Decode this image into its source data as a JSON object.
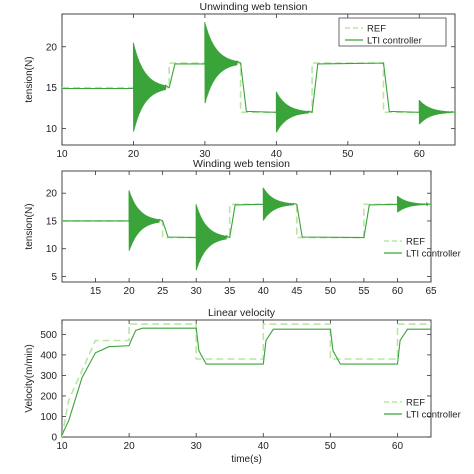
{
  "chart_data": [
    {
      "type": "line",
      "title": "Unwinding web tension",
      "xlabel": "",
      "ylabel": "tension(N)",
      "xlim": [
        10,
        65
      ],
      "ylim": [
        8,
        24
      ],
      "xticks": [
        10,
        20,
        30,
        40,
        50,
        60
      ],
      "yticks": [
        10,
        15,
        20
      ],
      "legend_position": "top-right",
      "series": [
        {
          "name": "REF",
          "style": "dashed",
          "color": "#b9e6a3",
          "x": [
            10,
            20,
            20,
            25,
            25,
            35,
            35,
            45,
            45,
            55,
            55,
            65
          ],
          "y": [
            15,
            15,
            15,
            15,
            18,
            18,
            12,
            12,
            18,
            18,
            12,
            12
          ]
        },
        {
          "name": "LTI controller",
          "style": "solid",
          "color": "#3aa33a",
          "x": [
            10,
            20,
            25,
            25.8,
            30,
            35,
            35.8,
            40,
            45,
            45.8,
            55,
            55.8,
            60,
            65
          ],
          "y": [
            14.9,
            14.9,
            15,
            17.9,
            17.9,
            18,
            12.1,
            12,
            12,
            17.9,
            18,
            12.1,
            12,
            12
          ],
          "oscillation_bursts": [
            [
              20,
              15,
              5.5
            ],
            [
              30,
              18,
              5
            ],
            [
              40,
              12,
              2.5
            ],
            [
              60,
              12,
              1.5
            ]
          ]
        }
      ]
    },
    {
      "type": "line",
      "title": "Winding web tension",
      "xlabel": "",
      "ylabel": "tension(N)",
      "xlim": [
        10,
        65
      ],
      "ylim": [
        4,
        24
      ],
      "xticks": [
        15,
        20,
        25,
        30,
        35,
        40,
        45,
        50,
        55,
        60,
        65
      ],
      "yticks": [
        5,
        10,
        15,
        20
      ],
      "legend_position": "bottom-right",
      "series": [
        {
          "name": "REF",
          "style": "dashed",
          "color": "#b9e6a3",
          "x": [
            10,
            25,
            25,
            35,
            35,
            45,
            45,
            55,
            55,
            65
          ],
          "y": [
            15,
            15,
            12,
            12,
            18,
            18,
            12,
            12,
            18,
            18
          ]
        },
        {
          "name": "LTI controller",
          "style": "solid",
          "color": "#3aa33a",
          "x": [
            10,
            20,
            25,
            25.8,
            30,
            35,
            35.8,
            40,
            45,
            45.8,
            55,
            55.8,
            60,
            65
          ],
          "y": [
            15,
            15,
            15,
            12.1,
            12,
            12,
            17.9,
            18,
            18,
            12.1,
            12,
            17.9,
            18,
            18
          ],
          "oscillation_bursts": [
            [
              20,
              15,
              5.5
            ],
            [
              30,
              12,
              6
            ],
            [
              40,
              18,
              3
            ],
            [
              60,
              18,
              1.5
            ]
          ]
        }
      ]
    },
    {
      "type": "line",
      "title": "Linear velocity",
      "xlabel": "time(s)",
      "ylabel": "Velocity(m/min)",
      "xlim": [
        10,
        65
      ],
      "ylim": [
        0,
        570
      ],
      "xticks": [
        10,
        20,
        30,
        40,
        50,
        60
      ],
      "yticks": [
        0,
        100,
        200,
        300,
        400,
        500
      ],
      "legend_position": "bottom-right",
      "series": [
        {
          "name": "REF",
          "style": "dashed",
          "color": "#b9e6a3",
          "x": [
            10,
            11,
            15,
            20,
            20,
            30,
            30,
            40,
            40,
            50,
            50,
            60,
            60,
            65
          ],
          "y": [
            0,
            180,
            470,
            470,
            550,
            550,
            380,
            380,
            550,
            550,
            380,
            380,
            550,
            550
          ]
        },
        {
          "name": "LTI controller",
          "style": "solid",
          "color": "#3aa33a",
          "x": [
            10,
            11,
            13,
            15,
            17,
            20,
            20.3,
            21,
            22,
            30,
            30.4,
            31.5,
            40,
            40.4,
            41.5,
            50,
            50.4,
            51.5,
            60,
            60.4,
            61.5,
            65
          ],
          "y": [
            10,
            80,
            290,
            410,
            440,
            445,
            470,
            520,
            530,
            530,
            420,
            355,
            355,
            470,
            525,
            525,
            420,
            355,
            355,
            470,
            525,
            525
          ]
        }
      ]
    }
  ]
}
